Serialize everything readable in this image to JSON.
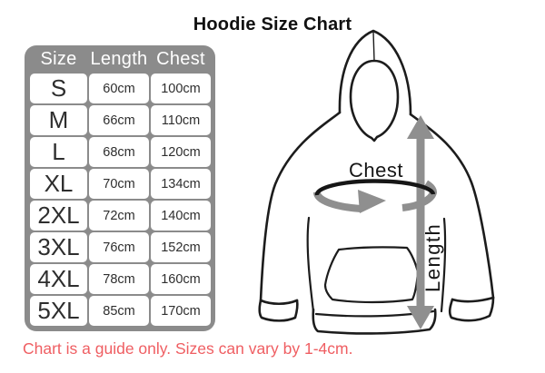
{
  "title": "Hoodie Size Chart",
  "note": "Chart is a guide only. Sizes can vary by 1-4cm.",
  "diagram": {
    "chest_label": "Chest",
    "length_label": "Length"
  },
  "chart_data": {
    "type": "table",
    "title": "Hoodie Size Chart",
    "columns": [
      "Size",
      "Length",
      "Chest"
    ],
    "rows": [
      [
        "S",
        "60cm",
        "100cm"
      ],
      [
        "M",
        "66cm",
        "110cm"
      ],
      [
        "L",
        "68cm",
        "120cm"
      ],
      [
        "XL",
        "70cm",
        "134cm"
      ],
      [
        "2XL",
        "72cm",
        "140cm"
      ],
      [
        "3XL",
        "76cm",
        "152cm"
      ],
      [
        "4XL",
        "78cm",
        "160cm"
      ],
      [
        "5XL",
        "85cm",
        "170cm"
      ]
    ],
    "note": "Chart is a guide only. Sizes can vary by 1-4cm."
  },
  "colors": {
    "table_gray": "#8b8b8b",
    "arrow_gray": "#8f8f8f",
    "note_red": "#ef5e62",
    "ink": "#1c1c1c",
    "cell_text": "#2e2e2e"
  }
}
